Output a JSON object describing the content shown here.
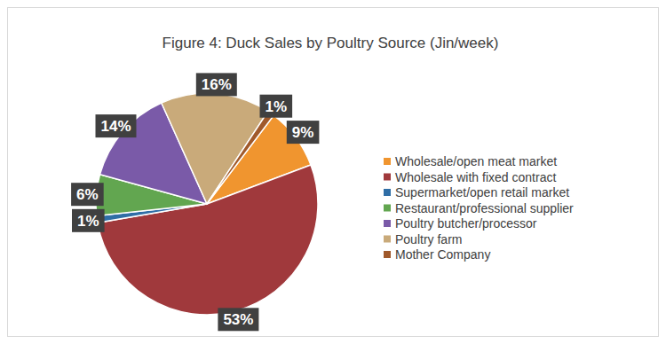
{
  "chart_data": {
    "type": "pie",
    "title": "Figure 4: Duck Sales by Poultry Source (Jin/week)",
    "categories": [
      "Wholesale/open meat market",
      "Wholesale with fixed contract",
      "Supermarket/open retail market",
      "Restaurant/professional supplier",
      "Poultry butcher/processor",
      "Poultry farm",
      "Mother Company"
    ],
    "values": [
      9,
      53,
      1,
      6,
      14,
      16,
      1
    ],
    "value_labels": [
      "9%",
      "53%",
      "1%",
      "6%",
      "14%",
      "16%",
      "1%"
    ],
    "colors": [
      "#f0952f",
      "#a0393c",
      "#2f6ea6",
      "#62a650",
      "#7a5aa8",
      "#c9aa7a",
      "#a0592b"
    ],
    "data_labels": true,
    "legend": "right"
  }
}
